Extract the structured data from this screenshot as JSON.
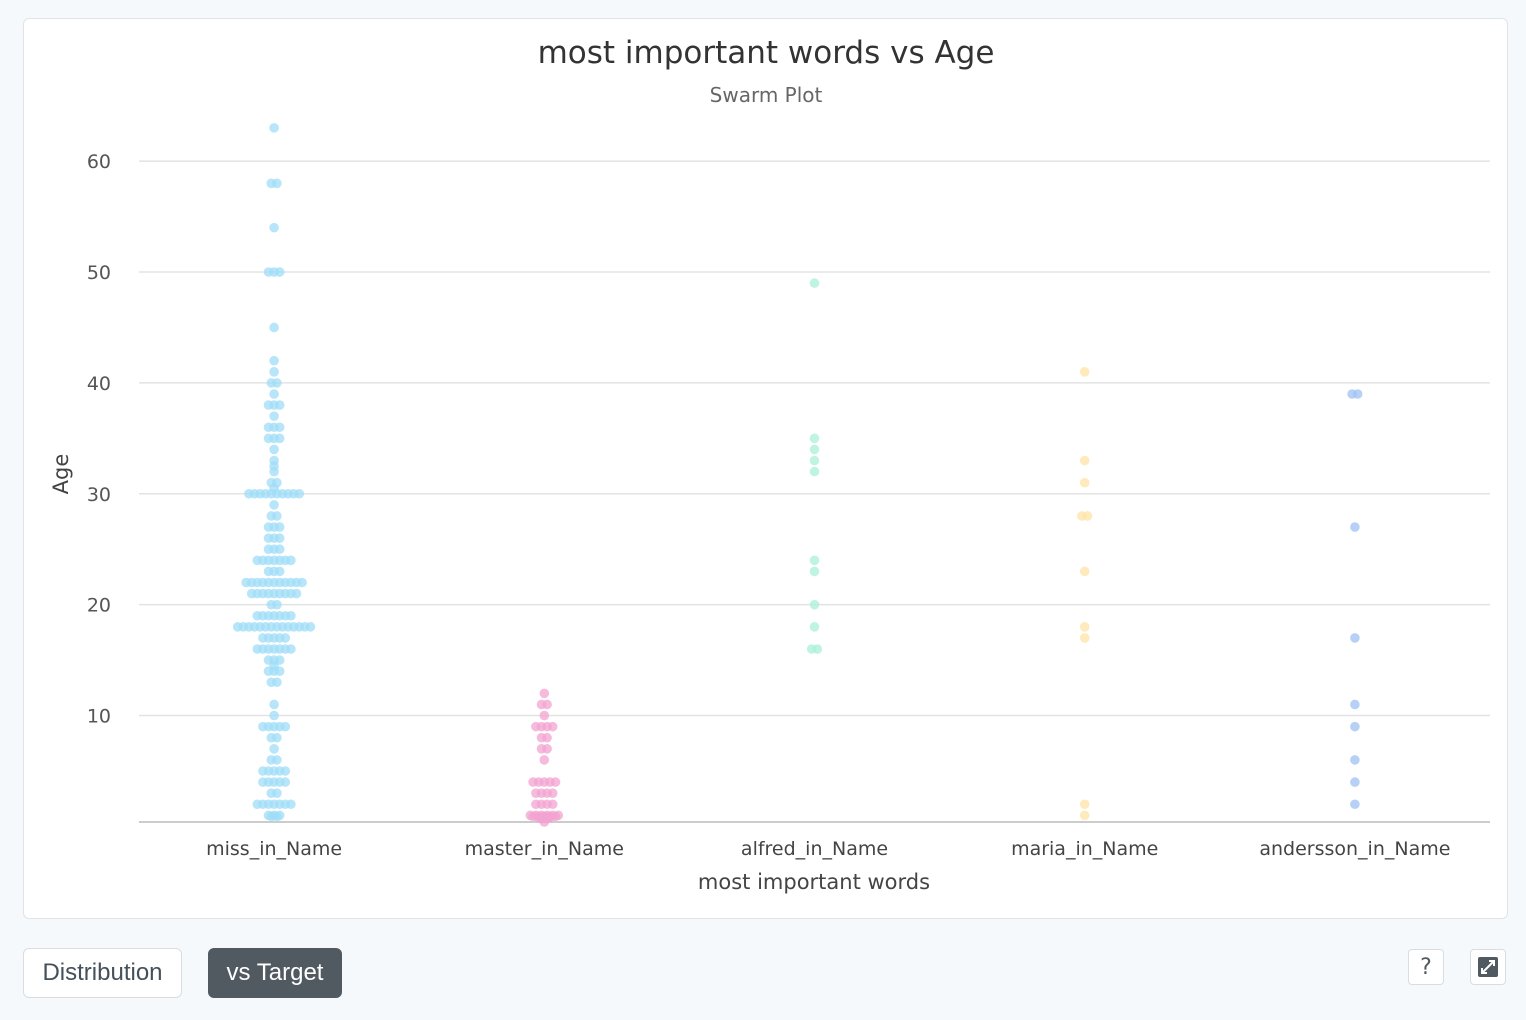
{
  "chart_data": {
    "type": "scatter",
    "subtype": "swarm",
    "title": "most important words vs Age",
    "subtitle": "Swarm Plot",
    "xlabel": "most important words",
    "ylabel": "Age",
    "categories": [
      "miss_in_Name",
      "master_in_Name",
      "alfred_in_Name",
      "maria_in_Name",
      "andersson_in_Name"
    ],
    "yticks": [
      10,
      20,
      30,
      40,
      50,
      60
    ],
    "ylim": [
      0.4,
      63.8
    ],
    "grid": true,
    "colors": [
      "#9fdcf7",
      "#f2a3d0",
      "#a9f0d7",
      "#fde3a6",
      "#9fc2f3"
    ],
    "series": [
      {
        "category": "miss_in_Name",
        "points": [
          [
            63,
            1
          ],
          [
            58,
            2
          ],
          [
            54,
            1
          ],
          [
            50,
            3
          ],
          [
            45,
            1
          ],
          [
            42,
            1
          ],
          [
            41,
            1
          ],
          [
            40,
            2
          ],
          [
            39,
            1
          ],
          [
            38,
            3
          ],
          [
            37,
            1
          ],
          [
            36,
            3
          ],
          [
            35,
            3
          ],
          [
            34,
            1
          ],
          [
            33,
            1
          ],
          [
            32.5,
            1
          ],
          [
            32,
            1
          ],
          [
            31,
            2
          ],
          [
            30,
            10
          ],
          [
            30.5,
            1
          ],
          [
            29,
            1
          ],
          [
            28,
            2
          ],
          [
            27,
            3
          ],
          [
            26,
            3
          ],
          [
            25,
            3
          ],
          [
            24,
            7
          ],
          [
            23,
            3
          ],
          [
            22,
            11
          ],
          [
            21,
            9
          ],
          [
            20,
            2
          ],
          [
            19,
            7
          ],
          [
            18,
            14
          ],
          [
            17,
            5
          ],
          [
            16,
            7
          ],
          [
            15,
            3
          ],
          [
            14.5,
            1
          ],
          [
            14,
            3
          ],
          [
            13,
            2
          ],
          [
            11,
            1
          ],
          [
            10,
            1
          ],
          [
            9,
            5
          ],
          [
            8,
            2
          ],
          [
            7,
            1
          ],
          [
            6,
            2
          ],
          [
            5,
            5
          ],
          [
            4,
            5
          ],
          [
            3,
            2
          ],
          [
            2,
            7
          ],
          [
            1,
            3
          ],
          [
            0.9,
            2
          ]
        ]
      },
      {
        "category": "master_in_Name",
        "points": [
          [
            12,
            1
          ],
          [
            11,
            2
          ],
          [
            10,
            1
          ],
          [
            9,
            4
          ],
          [
            8,
            2
          ],
          [
            7,
            2
          ],
          [
            6,
            1
          ],
          [
            4,
            5
          ],
          [
            3,
            4
          ],
          [
            2,
            4
          ],
          [
            1,
            6
          ],
          [
            0.9,
            5
          ],
          [
            0.8,
            3
          ],
          [
            0.7,
            2
          ],
          [
            0.4,
            1
          ]
        ]
      },
      {
        "category": "alfred_in_Name",
        "points": [
          [
            49,
            1
          ],
          [
            35,
            1
          ],
          [
            34,
            1
          ],
          [
            33,
            1
          ],
          [
            32,
            1
          ],
          [
            24,
            1
          ],
          [
            23,
            1
          ],
          [
            20,
            1
          ],
          [
            18,
            1
          ],
          [
            16,
            2
          ]
        ]
      },
      {
        "category": "maria_in_Name",
        "points": [
          [
            41,
            1
          ],
          [
            33,
            1
          ],
          [
            31,
            1
          ],
          [
            28,
            2
          ],
          [
            23,
            1
          ],
          [
            18,
            1
          ],
          [
            17,
            1
          ],
          [
            2,
            1
          ],
          [
            1,
            1
          ]
        ]
      },
      {
        "category": "andersson_in_Name",
        "points": [
          [
            39,
            2
          ],
          [
            27,
            1
          ],
          [
            17,
            1
          ],
          [
            11,
            1
          ],
          [
            9,
            1
          ],
          [
            6,
            1
          ],
          [
            4,
            1
          ],
          [
            2,
            1
          ]
        ]
      }
    ]
  },
  "controls": {
    "distribution_label": "Distribution",
    "vs_target_label": "vs Target",
    "help_label": "?"
  }
}
